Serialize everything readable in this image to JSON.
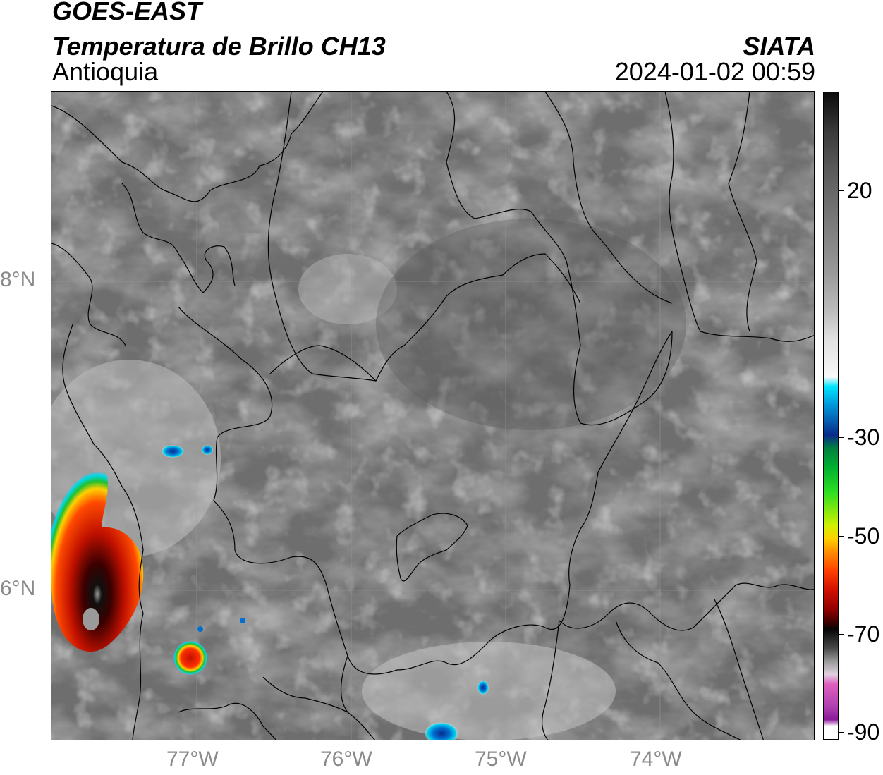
{
  "header": {
    "title": "GOES-EAST",
    "subtitle": "Temperatura de Brillo CH13",
    "region": "Antioquia",
    "organization": "SIATA",
    "datetime": "2024-01-02 00:59"
  },
  "axes": {
    "latitude_labels": [
      "8°N",
      "6°N"
    ],
    "longitude_labels": [
      "77°W",
      "76°W",
      "75°W",
      "74°W"
    ]
  },
  "colorbar": {
    "tick_labels": [
      "20",
      "-30",
      "-50",
      "-70",
      "-90"
    ],
    "colors": {
      "gray_scale_top": "#1a1a1a",
      "gray_mid": "#7a7a7a",
      "white": "#f8f8f8",
      "cyan": "#00e5ff",
      "blue": "#0a2a8a",
      "green": "#00cc33",
      "yellow": "#ffee00",
      "orange": "#ff7a00",
      "red": "#e01000",
      "dark_red": "#5a0000",
      "black": "#050505",
      "pink": "#e060c0",
      "purple": "#8a1a9a"
    }
  },
  "map": {
    "background_color": "#707070",
    "storm_colors": {
      "cyan": "#00e0f0",
      "blue": "#1040a0",
      "green": "#10c030",
      "yellow": "#f0f000",
      "orange": "#ff6000",
      "red": "#d01000",
      "dark": "#2a0000",
      "core": "#909090"
    }
  }
}
